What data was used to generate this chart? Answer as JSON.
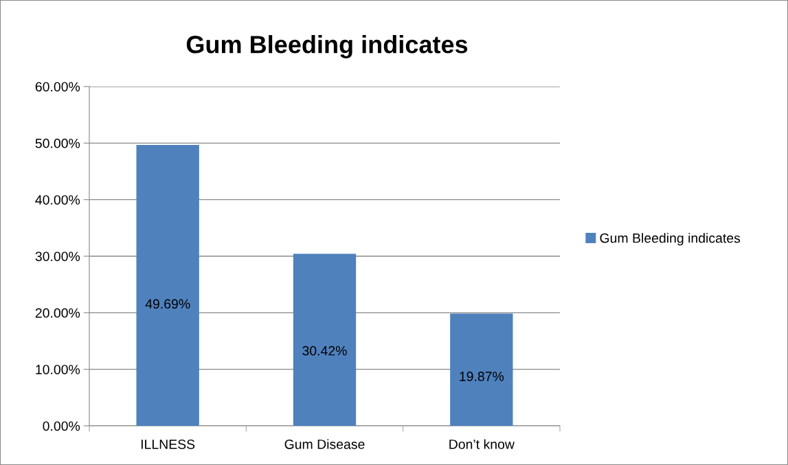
{
  "chart_data": {
    "type": "bar",
    "title": "Gum Bleeding indicates",
    "categories": [
      "ILLNESS",
      "Gum Disease",
      "Don’t know"
    ],
    "series": [
      {
        "name": "Gum Bleeding indicates",
        "color": "#4f81bd",
        "values": [
          49.69,
          30.42,
          19.87
        ],
        "value_labels": [
          "49.69%",
          "30.42%",
          "19.87%"
        ]
      }
    ],
    "ylim": [
      0,
      60
    ],
    "yticks": [
      {
        "value": 0,
        "label": "0.00%"
      },
      {
        "value": 10,
        "label": "10.00%"
      },
      {
        "value": 20,
        "label": "20.00%"
      },
      {
        "value": 30,
        "label": "30.00%"
      },
      {
        "value": 40,
        "label": "40.00%"
      },
      {
        "value": 50,
        "label": "50.00%"
      },
      {
        "value": 60,
        "label": "60.00%"
      }
    ],
    "grid": "y",
    "legend": "right"
  }
}
